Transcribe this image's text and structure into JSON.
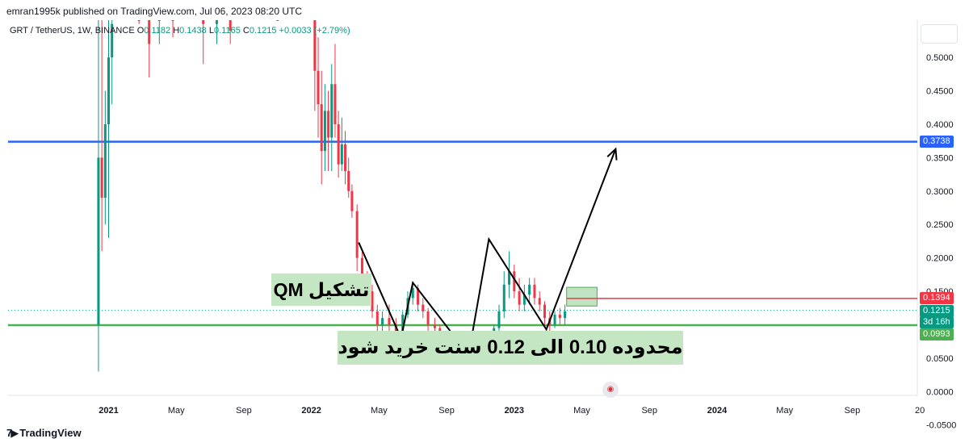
{
  "publisher": "emran1995k published on TradingView.com, Jul 06, 2023 08:20 UTC",
  "symbol": {
    "pair": "GRT / TetherUS, 1W, BINANCE",
    "open_label": "O",
    "open": "0.1182",
    "high_label": "H",
    "high": "0.1438",
    "low_label": "L",
    "low": "0.1165",
    "close_label": "C",
    "close": "0.1215",
    "change": "+0.0033 (+2.79%)"
  },
  "annotations": {
    "qm": "تشکیل QM",
    "buy_zone": "محدوده 0.10 الی 0.12 سنت خرید شود"
  },
  "price_tags": {
    "blue": "0.3738",
    "red": "0.1394",
    "last": "0.1215",
    "countdown": "3d 16h",
    "green": "0.0993"
  },
  "branding": "TradingView",
  "colors": {
    "up": "#089981",
    "down": "#f23645",
    "blue_line": "#2962ff",
    "red_line": "#f23645",
    "green_line": "#4caf50",
    "zone": "#c5e6c2"
  },
  "chart_data": {
    "type": "candlestick",
    "y_ticks": [
      "0.5000",
      "0.4500",
      "0.4000",
      "0.3500",
      "0.3000",
      "0.2500",
      "0.2000",
      "0.1500",
      "0.1000",
      "0.0500",
      "0.0000",
      "-0.0500"
    ],
    "y_tick_values": [
      0.5,
      0.45,
      0.4,
      0.35,
      0.3,
      0.25,
      0.2,
      0.15,
      0.1,
      0.05,
      0,
      -0.05
    ],
    "x_ticks": [
      {
        "label": "2021",
        "bold": true,
        "t": 0
      },
      {
        "label": "May",
        "bold": false,
        "t": 4
      },
      {
        "label": "Sep",
        "bold": false,
        "t": 8
      },
      {
        "label": "2022",
        "bold": true,
        "t": 12
      },
      {
        "label": "May",
        "bold": false,
        "t": 16
      },
      {
        "label": "Sep",
        "bold": false,
        "t": 20
      },
      {
        "label": "2023",
        "bold": true,
        "t": 24
      },
      {
        "label": "May",
        "bold": false,
        "t": 28
      },
      {
        "label": "Sep",
        "bold": false,
        "t": 32
      },
      {
        "label": "2024",
        "bold": true,
        "t": 36
      },
      {
        "label": "May",
        "bold": false,
        "t": 40
      },
      {
        "label": "Sep",
        "bold": false,
        "t": 44
      },
      {
        "label": "20",
        "bold": false,
        "t": 48
      }
    ],
    "horizontal_levels": [
      {
        "name": "blue",
        "value": 0.3738
      },
      {
        "name": "red",
        "value": 0.1394
      },
      {
        "name": "green",
        "value": 0.0993
      }
    ],
    "current_price": 0.1215,
    "zone": {
      "t_start": 27.1,
      "t_end": 28.9,
      "y_low": 0.128,
      "y_high": 0.156
    },
    "pattern_path": [
      {
        "t": 14.8,
        "y": 0.223
      },
      {
        "t": 17.3,
        "y": 0.08
      },
      {
        "t": 18.0,
        "y": 0.163
      },
      {
        "t": 21.3,
        "y": 0.055
      },
      {
        "t": 22.5,
        "y": 0.228
      },
      {
        "t": 25.9,
        "y": 0.093
      },
      {
        "t": 30.0,
        "y": 0.363
      }
    ],
    "candles": [
      {
        "t": -0.6,
        "o": 0.1,
        "h": 0.6,
        "l": 0.03,
        "c": 0.35
      },
      {
        "t": -0.4,
        "o": 0.35,
        "h": 0.6,
        "l": 0.21,
        "c": 0.29
      },
      {
        "t": -0.2,
        "o": 0.29,
        "h": 0.45,
        "l": 0.25,
        "c": 0.4
      },
      {
        "t": 0.0,
        "o": 0.4,
        "h": 0.6,
        "l": 0.23,
        "c": 0.5
      },
      {
        "t": 0.2,
        "o": 0.5,
        "h": 0.6,
        "l": 0.43,
        "c": 0.55
      },
      {
        "t": 1.8,
        "o": 0.6,
        "h": 0.6,
        "l": 0.55,
        "c": 0.58
      },
      {
        "t": 2.4,
        "o": 0.58,
        "h": 0.6,
        "l": 0.47,
        "c": 0.52
      },
      {
        "t": 3.0,
        "o": 0.57,
        "h": 0.6,
        "l": 0.52,
        "c": 0.59
      },
      {
        "t": 3.8,
        "o": 0.59,
        "h": 0.6,
        "l": 0.53,
        "c": 0.56
      },
      {
        "t": 5.6,
        "o": 0.59,
        "h": 0.6,
        "l": 0.49,
        "c": 0.55
      },
      {
        "t": 6.4,
        "o": 0.55,
        "h": 0.6,
        "l": 0.52,
        "c": 0.57
      },
      {
        "t": 7.2,
        "o": 0.57,
        "h": 0.6,
        "l": 0.52,
        "c": 0.54
      },
      {
        "t": 10.0,
        "o": 0.59,
        "h": 0.6,
        "l": 0.56,
        "c": 0.58
      },
      {
        "t": 12.2,
        "o": 0.6,
        "h": 0.6,
        "l": 0.42,
        "c": 0.48
      },
      {
        "t": 12.4,
        "o": 0.48,
        "h": 0.53,
        "l": 0.38,
        "c": 0.43
      },
      {
        "t": 12.6,
        "o": 0.43,
        "h": 0.48,
        "l": 0.31,
        "c": 0.36
      },
      {
        "t": 12.8,
        "o": 0.36,
        "h": 0.46,
        "l": 0.33,
        "c": 0.42
      },
      {
        "t": 13.0,
        "o": 0.42,
        "h": 0.45,
        "l": 0.33,
        "c": 0.38
      },
      {
        "t": 13.2,
        "o": 0.38,
        "h": 0.49,
        "l": 0.33,
        "c": 0.46
      },
      {
        "t": 13.4,
        "o": 0.46,
        "h": 0.52,
        "l": 0.38,
        "c": 0.4
      },
      {
        "t": 13.6,
        "o": 0.4,
        "h": 0.42,
        "l": 0.32,
        "c": 0.34
      },
      {
        "t": 13.8,
        "o": 0.34,
        "h": 0.41,
        "l": 0.33,
        "c": 0.37
      },
      {
        "t": 14.0,
        "o": 0.37,
        "h": 0.39,
        "l": 0.31,
        "c": 0.33
      },
      {
        "t": 14.2,
        "o": 0.33,
        "h": 0.35,
        "l": 0.29,
        "c": 0.3
      },
      {
        "t": 14.4,
        "o": 0.3,
        "h": 0.31,
        "l": 0.26,
        "c": 0.27
      },
      {
        "t": 14.7,
        "o": 0.27,
        "h": 0.28,
        "l": 0.18,
        "c": 0.2
      },
      {
        "t": 15.0,
        "o": 0.2,
        "h": 0.21,
        "l": 0.14,
        "c": 0.16
      },
      {
        "t": 15.3,
        "o": 0.16,
        "h": 0.18,
        "l": 0.13,
        "c": 0.15
      },
      {
        "t": 15.6,
        "o": 0.15,
        "h": 0.16,
        "l": 0.11,
        "c": 0.12
      },
      {
        "t": 15.9,
        "o": 0.12,
        "h": 0.13,
        "l": 0.085,
        "c": 0.1
      },
      {
        "t": 16.2,
        "o": 0.1,
        "h": 0.12,
        "l": 0.08,
        "c": 0.11
      },
      {
        "t": 16.6,
        "o": 0.11,
        "h": 0.13,
        "l": 0.09,
        "c": 0.1
      },
      {
        "t": 17.0,
        "o": 0.1,
        "h": 0.11,
        "l": 0.08,
        "c": 0.09
      },
      {
        "t": 17.4,
        "o": 0.09,
        "h": 0.12,
        "l": 0.08,
        "c": 0.115
      },
      {
        "t": 17.7,
        "o": 0.115,
        "h": 0.15,
        "l": 0.11,
        "c": 0.14
      },
      {
        "t": 18.0,
        "o": 0.14,
        "h": 0.16,
        "l": 0.13,
        "c": 0.155
      },
      {
        "t": 18.3,
        "o": 0.155,
        "h": 0.16,
        "l": 0.12,
        "c": 0.13
      },
      {
        "t": 18.6,
        "o": 0.13,
        "h": 0.14,
        "l": 0.11,
        "c": 0.12
      },
      {
        "t": 18.9,
        "o": 0.12,
        "h": 0.125,
        "l": 0.09,
        "c": 0.1
      },
      {
        "t": 19.3,
        "o": 0.1,
        "h": 0.11,
        "l": 0.085,
        "c": 0.095
      },
      {
        "t": 19.6,
        "o": 0.095,
        "h": 0.1,
        "l": 0.08,
        "c": 0.085
      },
      {
        "t": 20.0,
        "o": 0.085,
        "h": 0.09,
        "l": 0.075,
        "c": 0.08
      },
      {
        "t": 20.3,
        "o": 0.08,
        "h": 0.085,
        "l": 0.07,
        "c": 0.075
      },
      {
        "t": 20.7,
        "o": 0.075,
        "h": 0.08,
        "l": 0.065,
        "c": 0.07
      },
      {
        "t": 21.0,
        "o": 0.07,
        "h": 0.075,
        "l": 0.055,
        "c": 0.06
      },
      {
        "t": 21.3,
        "o": 0.06,
        "h": 0.065,
        "l": 0.052,
        "c": 0.058
      },
      {
        "t": 21.6,
        "o": 0.058,
        "h": 0.068,
        "l": 0.055,
        "c": 0.062
      },
      {
        "t": 21.9,
        "o": 0.062,
        "h": 0.07,
        "l": 0.055,
        "c": 0.06
      },
      {
        "t": 22.2,
        "o": 0.06,
        "h": 0.075,
        "l": 0.055,
        "c": 0.07
      },
      {
        "t": 22.5,
        "o": 0.07,
        "h": 0.09,
        "l": 0.065,
        "c": 0.085
      },
      {
        "t": 22.8,
        "o": 0.085,
        "h": 0.1,
        "l": 0.08,
        "c": 0.095
      },
      {
        "t": 23.1,
        "o": 0.095,
        "h": 0.13,
        "l": 0.09,
        "c": 0.12
      },
      {
        "t": 23.4,
        "o": 0.12,
        "h": 0.18,
        "l": 0.11,
        "c": 0.16
      },
      {
        "t": 23.7,
        "o": 0.16,
        "h": 0.21,
        "l": 0.14,
        "c": 0.18
      },
      {
        "t": 24.0,
        "o": 0.18,
        "h": 0.19,
        "l": 0.14,
        "c": 0.15
      },
      {
        "t": 24.3,
        "o": 0.15,
        "h": 0.17,
        "l": 0.12,
        "c": 0.13
      },
      {
        "t": 24.6,
        "o": 0.13,
        "h": 0.16,
        "l": 0.12,
        "c": 0.145
      },
      {
        "t": 24.9,
        "o": 0.145,
        "h": 0.17,
        "l": 0.13,
        "c": 0.16
      },
      {
        "t": 25.2,
        "o": 0.16,
        "h": 0.17,
        "l": 0.13,
        "c": 0.14
      },
      {
        "t": 25.5,
        "o": 0.14,
        "h": 0.15,
        "l": 0.12,
        "c": 0.13
      },
      {
        "t": 25.8,
        "o": 0.13,
        "h": 0.135,
        "l": 0.1,
        "c": 0.11
      },
      {
        "t": 26.1,
        "o": 0.11,
        "h": 0.12,
        "l": 0.09,
        "c": 0.1
      },
      {
        "t": 26.4,
        "o": 0.1,
        "h": 0.12,
        "l": 0.095,
        "c": 0.115
      },
      {
        "t": 26.7,
        "o": 0.115,
        "h": 0.125,
        "l": 0.1,
        "c": 0.11
      },
      {
        "t": 27.0,
        "o": 0.11,
        "h": 0.13,
        "l": 0.1,
        "c": 0.12
      }
    ]
  }
}
